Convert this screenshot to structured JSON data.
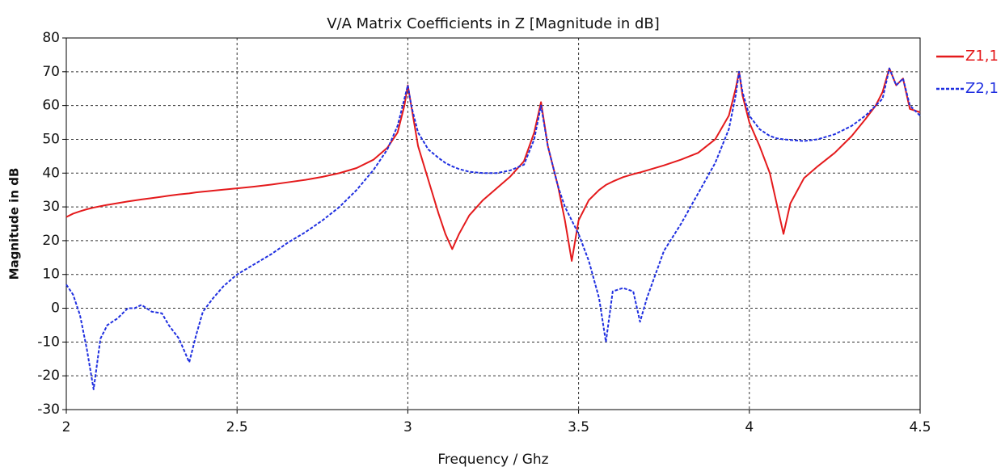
{
  "chart_data": {
    "type": "line",
    "title": "V/A Matrix Coefficients in Z [Magnitude in dB]",
    "x_label": "Frequency / Ghz",
    "y_label": "Magnitude in dB",
    "x": [
      2.0,
      2.02,
      2.04,
      2.06,
      2.08,
      2.1,
      2.12,
      2.15,
      2.18,
      2.2,
      2.22,
      2.25,
      2.28,
      2.3,
      2.33,
      2.36,
      2.38,
      2.4,
      2.43,
      2.46,
      2.5,
      2.55,
      2.6,
      2.65,
      2.7,
      2.75,
      2.8,
      2.85,
      2.9,
      2.94,
      2.97,
      2.99,
      3.0,
      3.01,
      3.03,
      3.06,
      3.09,
      3.11,
      3.13,
      3.15,
      3.18,
      3.22,
      3.26,
      3.3,
      3.34,
      3.37,
      3.39,
      3.41,
      3.44,
      3.46,
      3.48,
      3.5,
      3.53,
      3.56,
      3.58,
      3.6,
      3.63,
      3.66,
      3.68,
      3.7,
      3.75,
      3.8,
      3.85,
      3.9,
      3.94,
      3.96,
      3.97,
      3.98,
      4.0,
      4.03,
      4.06,
      4.08,
      4.1,
      4.12,
      4.16,
      4.2,
      4.25,
      4.3,
      4.34,
      4.37,
      4.39,
      4.41,
      4.43,
      4.45,
      4.47,
      4.5
    ],
    "series": [
      {
        "name": "Z1,1",
        "color": "#e41a1c",
        "dashed": false,
        "values": [
          27,
          28,
          28.7,
          29.3,
          29.8,
          30.2,
          30.6,
          31.1,
          31.6,
          31.9,
          32.2,
          32.6,
          33,
          33.3,
          33.7,
          34,
          34.3,
          34.5,
          34.8,
          35.1,
          35.5,
          36,
          36.6,
          37.3,
          38,
          38.9,
          40,
          41.5,
          44,
          47.5,
          52,
          60,
          66,
          60,
          48,
          38,
          28,
          22,
          17.5,
          22,
          27.5,
          32,
          35.5,
          39,
          43.5,
          52,
          61,
          48,
          36,
          26,
          14,
          26,
          32,
          35,
          36.5,
          37.5,
          38.8,
          39.7,
          40.2,
          40.8,
          42.3,
          44,
          46,
          50,
          57,
          65,
          70,
          63,
          55,
          48,
          40,
          31,
          22,
          31,
          38.5,
          42,
          46,
          51,
          56,
          60,
          64,
          71,
          66,
          68,
          59,
          58
        ]
      },
      {
        "name": "Z2,1",
        "color": "#1f2fe0",
        "dashed": true,
        "values": [
          7,
          4,
          -2,
          -12,
          -24,
          -9,
          -5,
          -3,
          0,
          0,
          1,
          -1,
          -1.5,
          -5,
          -9,
          -16,
          -8,
          -1,
          3,
          6.5,
          10,
          13,
          16,
          19.5,
          22.5,
          26,
          30,
          35,
          41,
          47,
          54,
          62,
          66,
          60,
          52,
          47,
          44.5,
          43,
          42,
          41.2,
          40.4,
          40,
          40,
          40.8,
          42.5,
          50,
          60,
          48,
          36,
          30,
          26,
          22,
          14,
          3,
          -10,
          5,
          6,
          5,
          -4,
          3,
          17,
          25,
          34,
          43,
          53,
          63,
          70,
          64,
          57,
          53,
          51,
          50.3,
          50,
          49.8,
          49.5,
          50,
          51.5,
          54,
          57,
          60,
          62,
          71,
          66,
          68,
          60,
          57
        ]
      }
    ],
    "xlim": [
      2,
      4.5
    ],
    "xticks": [
      2,
      2.5,
      3,
      3.5,
      4,
      4.5
    ],
    "ylim": [
      -30,
      80
    ],
    "yticks": [
      -30,
      -20,
      -10,
      0,
      10,
      20,
      30,
      40,
      50,
      60,
      70,
      80
    ],
    "grid": true,
    "legend": "right"
  }
}
